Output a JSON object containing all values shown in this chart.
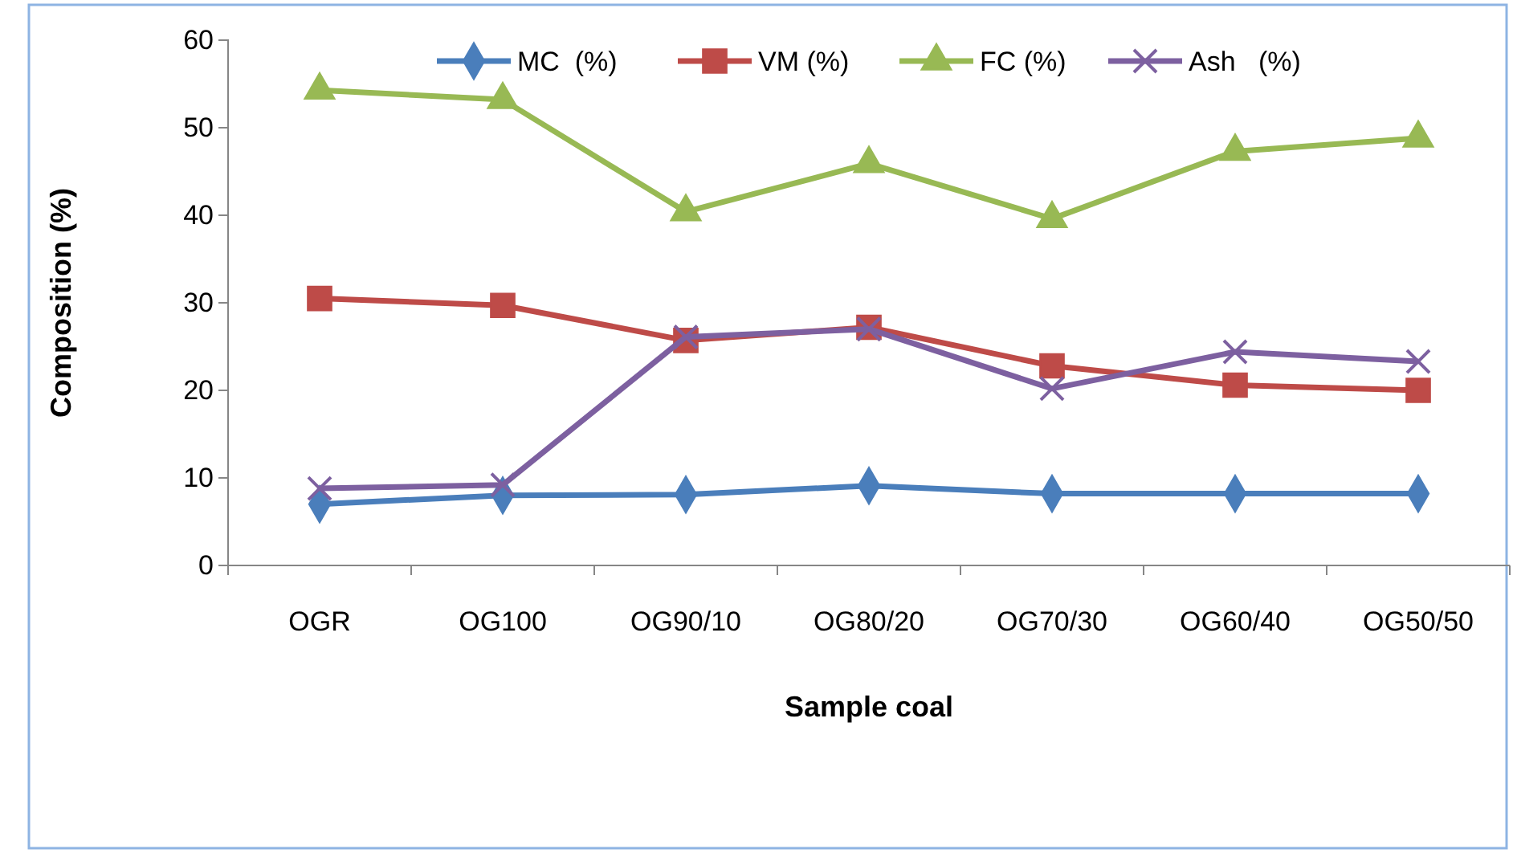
{
  "chart_data": {
    "type": "line",
    "xlabel": "Sample coal",
    "ylabel": "Composition (%)",
    "categories": [
      "OGR",
      "OG100",
      "OG90/10",
      "OG80/20",
      "OG70/30",
      "OG60/40",
      "OG50/50"
    ],
    "ylim": [
      0,
      60
    ],
    "yticks": [
      0,
      10,
      20,
      30,
      40,
      50,
      60
    ],
    "grid": false,
    "legend": "top",
    "series": [
      {
        "name": "MC  (%)",
        "color": "#4a7ebb",
        "marker": "diamond",
        "values": [
          7.0,
          8.0,
          8.1,
          9.1,
          8.2,
          8.2,
          8.2
        ]
      },
      {
        "name": "VM (%)",
        "color": "#be4b48",
        "marker": "square",
        "values": [
          30.5,
          29.7,
          25.7,
          27.2,
          22.8,
          20.6,
          20.0
        ]
      },
      {
        "name": "FC (%)",
        "color": "#98b954",
        "marker": "triangle",
        "values": [
          54.3,
          53.2,
          40.4,
          45.9,
          39.6,
          47.3,
          48.8
        ]
      },
      {
        "name": "Ash   (%)",
        "color": "#7d60a0",
        "marker": "cross",
        "values": [
          8.8,
          9.2,
          26.1,
          27.0,
          20.2,
          24.4,
          23.3
        ]
      }
    ]
  }
}
